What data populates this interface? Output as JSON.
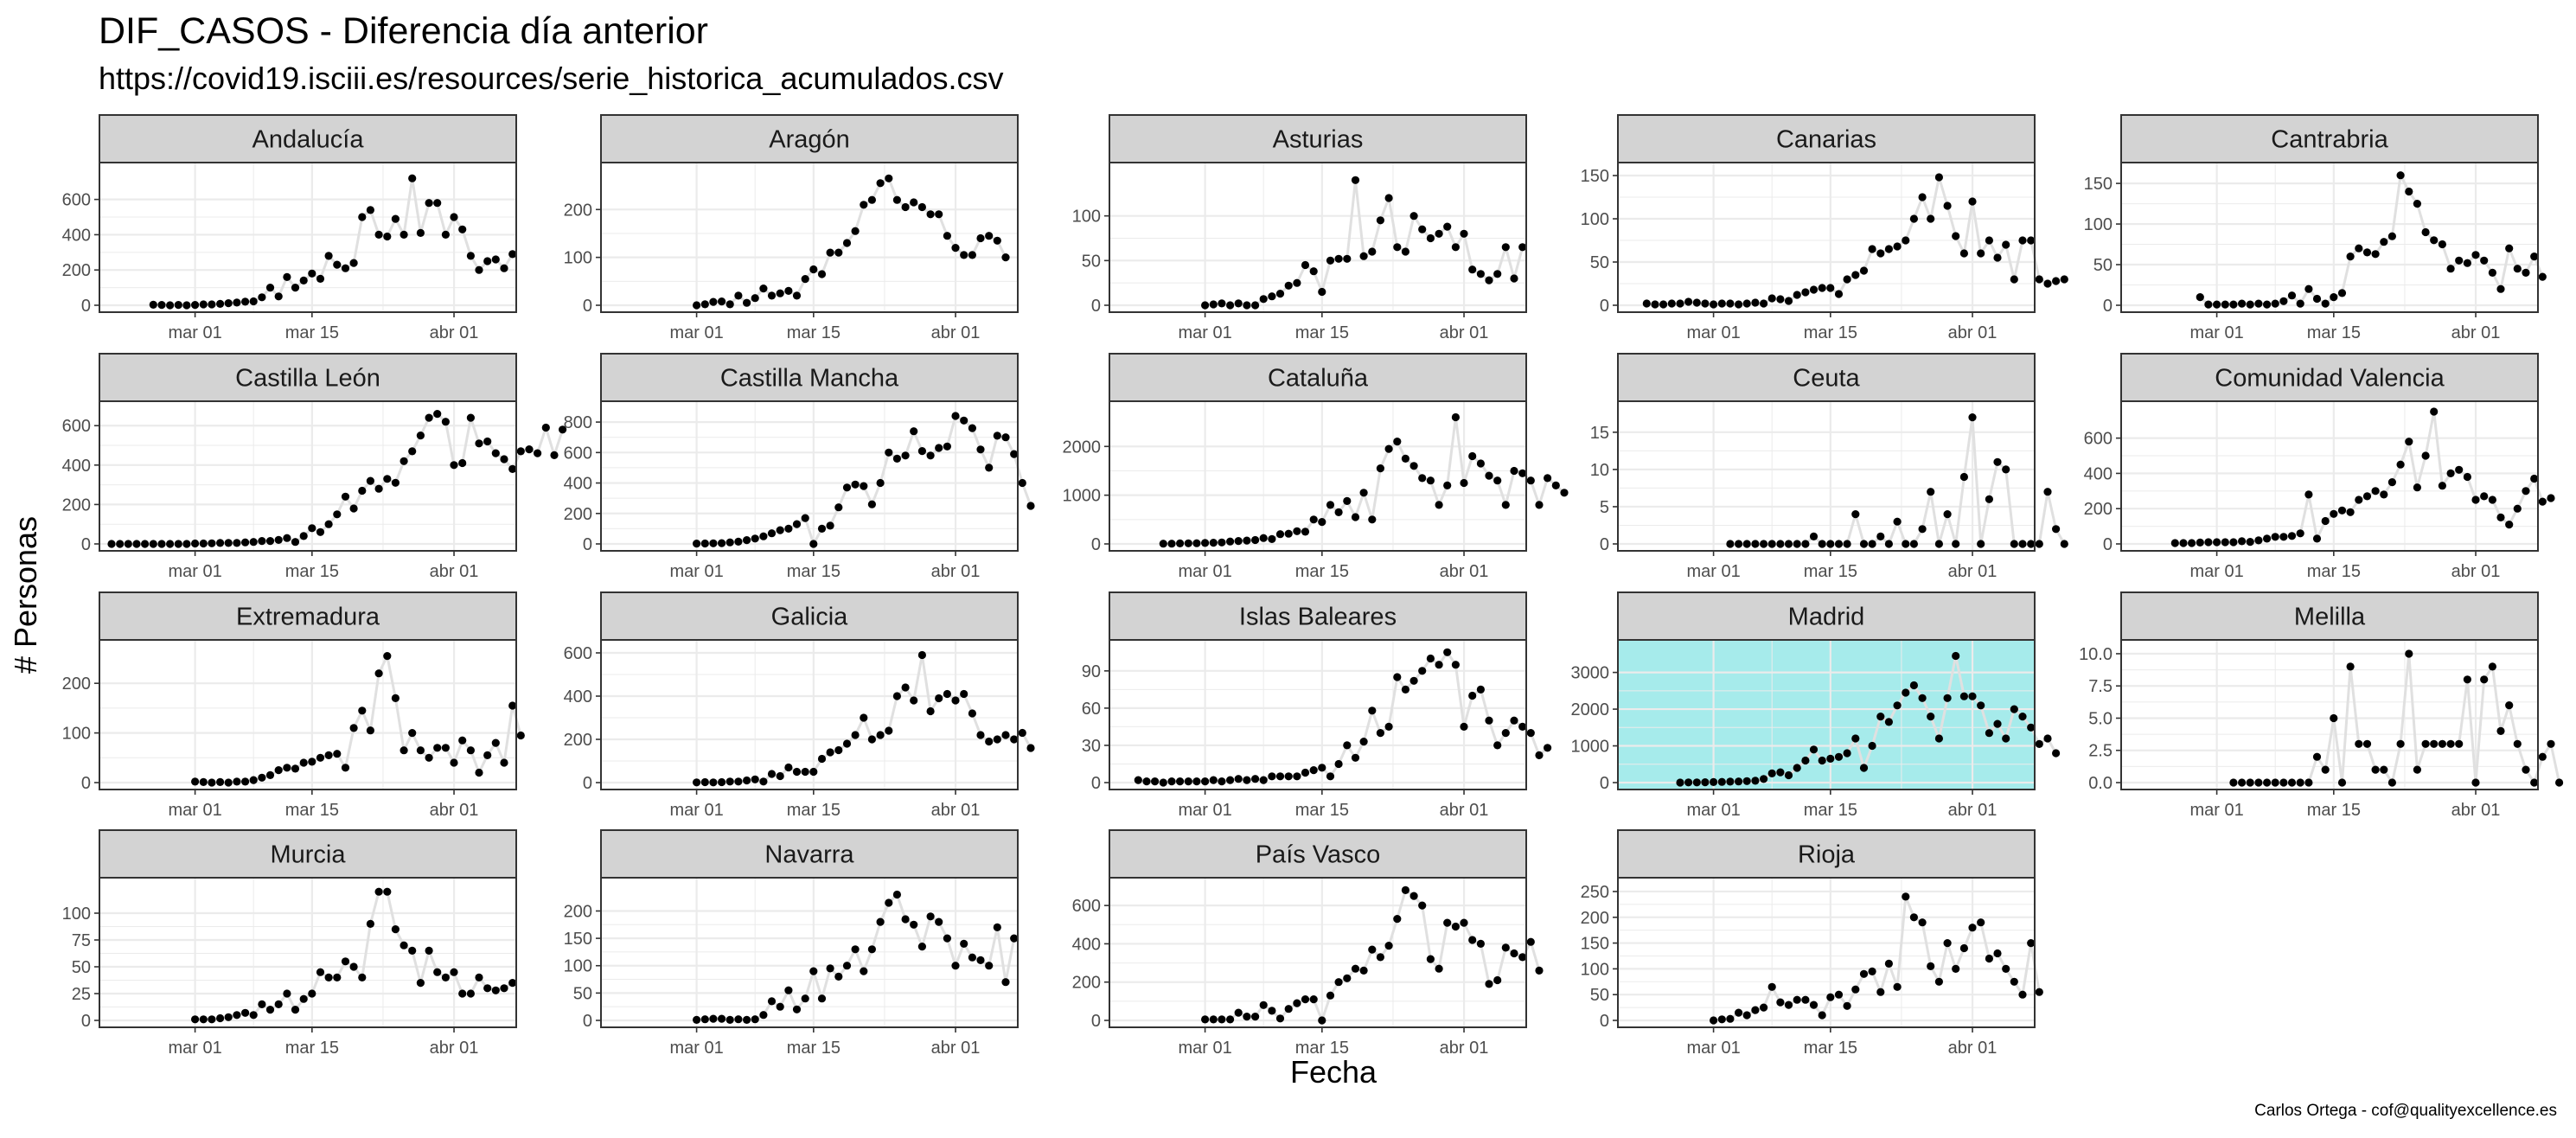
{
  "title": "DIF_CASOS - Diferencia día anterior",
  "subtitle": "https://covid19.isciii.es/resources/serie_historica_acumulados.csv",
  "caption": "Carlos Ortega - cof@qualityexcellence.es",
  "colors": {
    "highlight_panel": "#A6EBEB",
    "strip_bg": "#D3D3D3",
    "point": "#000000",
    "line": "#E0E0E0",
    "grid": "#EBEBEB"
  },
  "chart_data": {
    "type": "scatter",
    "facet": "wrap",
    "xlabel": "Fecha",
    "ylabel": "# Personas",
    "x_ticks": [
      "mar 01",
      "mar 15",
      "abr 01"
    ],
    "x_tick_dates": [
      "2020-03-01",
      "2020-03-15",
      "2020-04-01"
    ],
    "xlim": [
      "2020-02-20",
      "2020-04-07"
    ],
    "grid": true,
    "highlight": "Madrid",
    "panels": [
      {
        "name": "Andalucía",
        "start": "2020-02-25",
        "ylim": [
          0,
          760
        ],
        "yticks": [
          0,
          200,
          400,
          600
        ],
        "values": [
          3,
          2,
          0,
          2,
          0,
          2,
          5,
          5,
          8,
          12,
          15,
          20,
          22,
          45,
          100,
          50,
          160,
          100,
          140,
          180,
          150,
          280,
          230,
          210,
          240,
          500,
          540,
          400,
          390,
          490,
          400,
          720,
          410,
          580,
          580,
          400,
          500,
          430,
          280,
          200,
          250,
          260,
          210,
          290
        ]
      },
      {
        "name": "Aragón",
        "start": "2020-03-01",
        "ylim": [
          0,
          280
        ],
        "yticks": [
          0,
          100,
          200
        ],
        "values": [
          0,
          2,
          7,
          8,
          2,
          20,
          5,
          15,
          35,
          20,
          25,
          30,
          20,
          55,
          75,
          65,
          110,
          110,
          130,
          155,
          210,
          220,
          255,
          265,
          220,
          205,
          215,
          205,
          190,
          190,
          145,
          120,
          105,
          105,
          140,
          145,
          135,
          100
        ]
      },
      {
        "name": "Asturias",
        "start": "2020-03-01",
        "ylim": [
          0,
          150
        ],
        "yticks": [
          0,
          50,
          100
        ],
        "values": [
          0,
          1,
          2,
          0,
          2,
          0,
          0,
          7,
          10,
          13,
          22,
          25,
          45,
          38,
          15,
          50,
          52,
          52,
          140,
          55,
          60,
          95,
          120,
          65,
          60,
          100,
          85,
          75,
          80,
          88,
          65,
          80,
          40,
          35,
          28,
          35,
          65,
          30,
          65
        ]
      },
      {
        "name": "Canarias",
        "start": "2020-02-22",
        "ylim": [
          0,
          155
        ],
        "yticks": [
          0,
          50,
          100,
          150
        ],
        "values": [
          2,
          1,
          1,
          2,
          2,
          4,
          3,
          2,
          1,
          2,
          2,
          1,
          2,
          3,
          2,
          8,
          7,
          5,
          12,
          15,
          18,
          20,
          20,
          13,
          30,
          35,
          40,
          65,
          60,
          65,
          68,
          75,
          100,
          125,
          100,
          148,
          115,
          80,
          60,
          120,
          60,
          75,
          55,
          70,
          30,
          75,
          75,
          30,
          25,
          28,
          30
        ]
      },
      {
        "name": "Cantrabria",
        "start": "2020-02-28",
        "ylim": [
          0,
          165
        ],
        "yticks": [
          0,
          50,
          100,
          150
        ],
        "values": [
          10,
          1,
          1,
          1,
          1,
          2,
          1,
          2,
          1,
          2,
          5,
          12,
          2,
          20,
          8,
          2,
          10,
          15,
          60,
          70,
          65,
          63,
          78,
          85,
          160,
          140,
          125,
          90,
          80,
          75,
          45,
          55,
          52,
          62,
          55,
          40,
          20,
          70,
          45,
          40,
          60,
          35
        ]
      },
      {
        "name": "Castilla León",
        "start": "2020-02-20",
        "ylim": [
          0,
          680
        ],
        "yticks": [
          0,
          200,
          400,
          600
        ],
        "values": [
          0,
          0,
          0,
          0,
          0,
          0,
          0,
          0,
          0,
          0,
          2,
          2,
          3,
          5,
          5,
          5,
          8,
          10,
          15,
          15,
          20,
          30,
          10,
          40,
          80,
          60,
          100,
          150,
          240,
          180,
          270,
          320,
          280,
          330,
          310,
          420,
          470,
          550,
          640,
          660,
          620,
          400,
          410,
          640,
          510,
          520,
          460,
          430,
          380,
          470,
          480,
          460,
          590,
          450,
          580
        ]
      },
      {
        "name": "Castilla Mancha",
        "start": "2020-03-01",
        "ylim": [
          0,
          880
        ],
        "yticks": [
          0,
          200,
          400,
          600,
          800
        ],
        "values": [
          2,
          3,
          4,
          5,
          10,
          15,
          25,
          35,
          50,
          70,
          90,
          100,
          130,
          170,
          0,
          100,
          120,
          240,
          370,
          390,
          380,
          260,
          400,
          600,
          560,
          580,
          740,
          610,
          580,
          630,
          640,
          840,
          810,
          760,
          620,
          500,
          710,
          700,
          590,
          400,
          250
        ]
      },
      {
        "name": "Cataluña",
        "start": "2020-02-25",
        "ylim": [
          0,
          2750
        ],
        "yticks": [
          0,
          1000,
          2000
        ],
        "values": [
          5,
          5,
          10,
          12,
          15,
          20,
          25,
          30,
          50,
          60,
          70,
          80,
          120,
          100,
          200,
          210,
          260,
          250,
          500,
          450,
          800,
          650,
          880,
          550,
          1050,
          500,
          1550,
          1950,
          2100,
          1750,
          1600,
          1350,
          1300,
          800,
          1200,
          2600,
          1250,
          1800,
          1650,
          1400,
          1300,
          800,
          1500,
          1450,
          1300,
          800,
          1350,
          1200,
          1050
        ]
      },
      {
        "name": "Ceuta",
        "start": "2020-03-03",
        "ylim": [
          0,
          18
        ],
        "yticks": [
          0,
          5,
          10,
          15
        ],
        "values": [
          0,
          0,
          0,
          0,
          0,
          0,
          0,
          0,
          0,
          0,
          1,
          0,
          0,
          0,
          0,
          4,
          0,
          0,
          1,
          0,
          3,
          0,
          0,
          2,
          7,
          0,
          4,
          0,
          9,
          17,
          0,
          6,
          11,
          10,
          0,
          0,
          0,
          0,
          7,
          2,
          0
        ]
      },
      {
        "name": "Comunidad Valencia",
        "start": "2020-02-25",
        "ylim": [
          0,
          760
        ],
        "yticks": [
          0,
          200,
          400,
          600
        ],
        "values": [
          5,
          5,
          5,
          8,
          10,
          10,
          10,
          10,
          15,
          12,
          20,
          30,
          40,
          40,
          45,
          60,
          280,
          30,
          130,
          170,
          190,
          180,
          250,
          270,
          300,
          280,
          350,
          450,
          580,
          320,
          500,
          750,
          330,
          400,
          420,
          380,
          250,
          270,
          250,
          150,
          110,
          200,
          300,
          370,
          240,
          260
        ]
      },
      {
        "name": "Extremadura",
        "start": "2020-03-01",
        "ylim": [
          0,
          270
        ],
        "yticks": [
          0,
          100,
          200
        ],
        "values": [
          2,
          1,
          0,
          1,
          0,
          2,
          2,
          5,
          10,
          15,
          25,
          30,
          28,
          40,
          42,
          50,
          55,
          58,
          30,
          110,
          145,
          105,
          220,
          255,
          170,
          65,
          100,
          65,
          50,
          70,
          70,
          40,
          85,
          65,
          20,
          55,
          80,
          40,
          155,
          95
        ]
      },
      {
        "name": "Galicia",
        "start": "2020-03-01",
        "ylim": [
          0,
          620
        ],
        "yticks": [
          0,
          200,
          400,
          600
        ],
        "values": [
          1,
          2,
          1,
          2,
          5,
          5,
          10,
          15,
          5,
          40,
          30,
          70,
          50,
          50,
          50,
          110,
          140,
          150,
          180,
          220,
          300,
          200,
          220,
          240,
          400,
          440,
          380,
          590,
          330,
          390,
          410,
          380,
          410,
          320,
          220,
          190,
          200,
          220,
          200,
          230,
          160
        ]
      },
      {
        "name": "Islas Baleares",
        "start": "2020-02-22",
        "ylim": [
          0,
          108
        ],
        "yticks": [
          0,
          30,
          60,
          90
        ],
        "values": [
          2,
          1,
          1,
          0,
          1,
          1,
          1,
          1,
          1,
          2,
          1,
          2,
          3,
          2,
          3,
          2,
          5,
          5,
          5,
          5,
          8,
          10,
          12,
          5,
          15,
          30,
          20,
          33,
          58,
          40,
          45,
          85,
          75,
          82,
          90,
          100,
          95,
          105,
          95,
          45,
          70,
          75,
          50,
          30,
          40,
          50,
          45,
          40,
          22,
          28
        ]
      },
      {
        "name": "Madrid",
        "start": "2020-02-26",
        "ylim": [
          0,
          3650
        ],
        "yticks": [
          0,
          1000,
          2000,
          3000
        ],
        "values": [
          0,
          5,
          5,
          10,
          15,
          20,
          25,
          30,
          40,
          50,
          100,
          250,
          280,
          200,
          400,
          600,
          900,
          600,
          650,
          700,
          800,
          1200,
          400,
          1000,
          1800,
          1650,
          2100,
          2450,
          2650,
          2300,
          1800,
          1200,
          2300,
          3450,
          2350,
          2350,
          2100,
          1350,
          1600,
          1200,
          2000,
          1800,
          1500,
          1050,
          1200,
          800
        ]
      },
      {
        "name": "Melilla",
        "start": "2020-03-03",
        "ylim": [
          0,
          10.4
        ],
        "yticks": [
          0.0,
          2.5,
          5.0,
          7.5,
          10.0
        ],
        "values": [
          0,
          0,
          0,
          0,
          0,
          0,
          0,
          0,
          0,
          0,
          2,
          1,
          5,
          0,
          9,
          3,
          3,
          1,
          1,
          0,
          3,
          10,
          1,
          3,
          3,
          3,
          3,
          3,
          8,
          0,
          8,
          9,
          4,
          6,
          3,
          1,
          0,
          2,
          3,
          0
        ]
      },
      {
        "name": "Murcia",
        "start": "2020-03-01",
        "ylim": [
          0,
          125
        ],
        "yticks": [
          0,
          25,
          50,
          75,
          100
        ],
        "values": [
          1,
          1,
          1,
          2,
          3,
          5,
          7,
          5,
          15,
          10,
          15,
          25,
          10,
          20,
          25,
          45,
          40,
          40,
          55,
          50,
          40,
          90,
          120,
          120,
          85,
          70,
          65,
          35,
          65,
          45,
          40,
          45,
          25,
          25,
          40,
          30,
          28,
          30,
          35
        ]
      },
      {
        "name": "Navarra",
        "start": "2020-03-01",
        "ylim": [
          0,
          245
        ],
        "yticks": [
          0,
          50,
          100,
          150,
          200
        ],
        "values": [
          1,
          2,
          3,
          3,
          1,
          2,
          1,
          2,
          10,
          35,
          25,
          55,
          20,
          40,
          90,
          40,
          95,
          80,
          100,
          130,
          90,
          130,
          180,
          215,
          230,
          185,
          175,
          135,
          190,
          180,
          150,
          100,
          140,
          115,
          110,
          100,
          170,
          70,
          150
        ]
      },
      {
        "name": "País Vasco",
        "start": "2020-03-01",
        "ylim": [
          0,
          700
        ],
        "yticks": [
          0,
          200,
          400,
          600
        ],
        "values": [
          5,
          5,
          5,
          5,
          40,
          20,
          20,
          80,
          50,
          10,
          60,
          90,
          110,
          110,
          0,
          130,
          200,
          220,
          270,
          260,
          370,
          330,
          390,
          530,
          680,
          650,
          600,
          320,
          270,
          510,
          490,
          510,
          420,
          400,
          190,
          210,
          380,
          350,
          330,
          410,
          260
        ]
      },
      {
        "name": "Rioja",
        "start": "2020-03-01",
        "ylim": [
          0,
          260
        ],
        "yticks": [
          0,
          50,
          100,
          150,
          200,
          250
        ],
        "values": [
          0,
          2,
          3,
          15,
          10,
          20,
          25,
          65,
          35,
          30,
          40,
          40,
          30,
          10,
          45,
          50,
          28,
          60,
          90,
          95,
          55,
          110,
          65,
          240,
          200,
          190,
          105,
          75,
          150,
          100,
          140,
          180,
          190,
          120,
          130,
          100,
          75,
          50,
          150,
          55
        ]
      }
    ]
  }
}
